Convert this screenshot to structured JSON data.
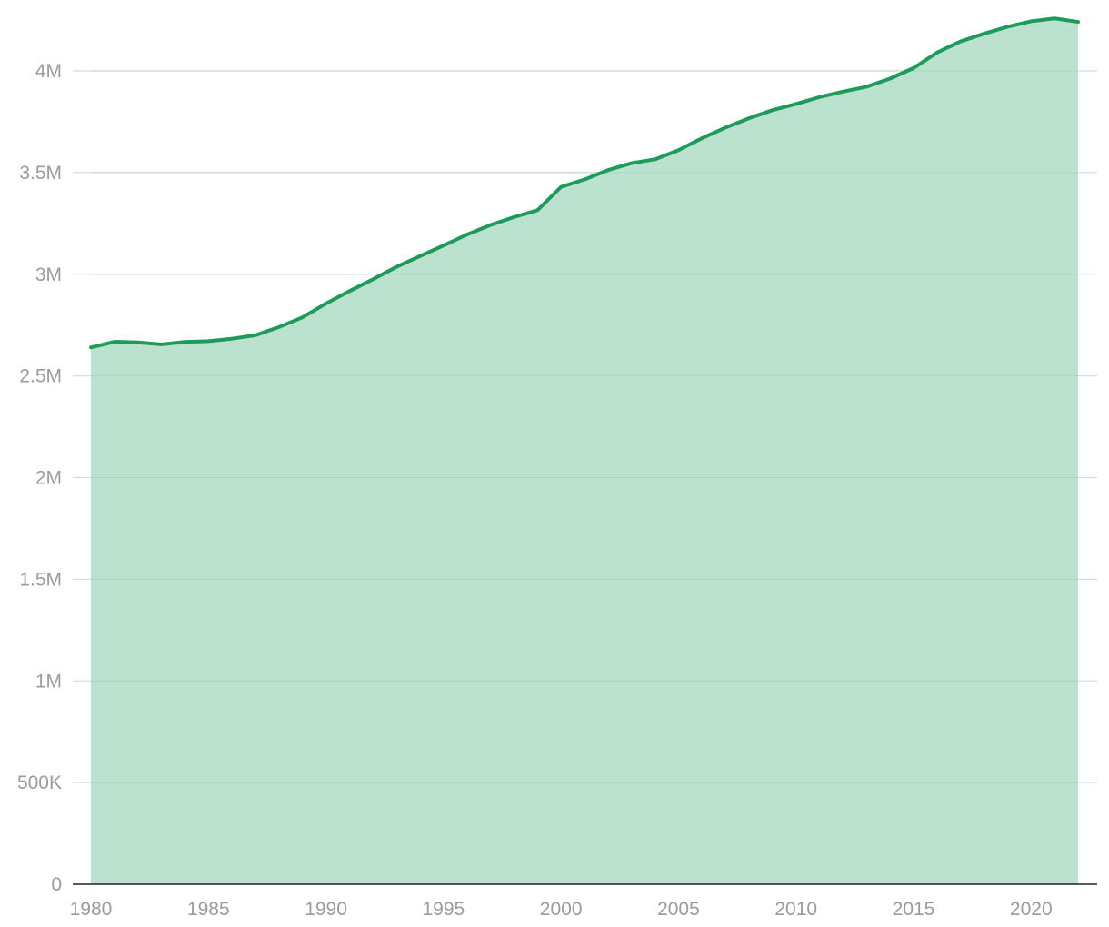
{
  "chart_data": {
    "type": "area",
    "title": "",
    "xlabel": "",
    "ylabel": "",
    "x": [
      1980,
      1981,
      1982,
      1983,
      1984,
      1985,
      1986,
      1987,
      1988,
      1989,
      1990,
      1991,
      1992,
      1993,
      1994,
      1995,
      1996,
      1997,
      1998,
      1999,
      2000,
      2001,
      2002,
      2003,
      2004,
      2005,
      2006,
      2007,
      2008,
      2009,
      2010,
      2011,
      2012,
      2013,
      2014,
      2015,
      2016,
      2017,
      2018,
      2019,
      2020,
      2021,
      2022
    ],
    "values": [
      2640000,
      2668000,
      2665000,
      2655000,
      2667000,
      2671000,
      2683000,
      2700000,
      2740000,
      2788000,
      2856000,
      2917000,
      2975000,
      3036000,
      3089000,
      3141000,
      3195000,
      3242000,
      3281000,
      3315000,
      3429000,
      3466000,
      3512000,
      3546000,
      3565000,
      3610000,
      3669000,
      3721000,
      3767000,
      3807000,
      3837000,
      3871000,
      3898000,
      3922000,
      3962000,
      4014000,
      4090000,
      4145000,
      4183000,
      4217000,
      4244000,
      4258000,
      4241000
    ],
    "x_ticks": [
      "1980",
      "1985",
      "1990",
      "1995",
      "2000",
      "2005",
      "2010",
      "2015",
      "2020"
    ],
    "y_ticks": [
      {
        "value": 0,
        "label": "0"
      },
      {
        "value": 500000,
        "label": "500K"
      },
      {
        "value": 1000000,
        "label": "1M"
      },
      {
        "value": 1500000,
        "label": "1.5M"
      },
      {
        "value": 2000000,
        "label": "2M"
      },
      {
        "value": 2500000,
        "label": "2.5M"
      },
      {
        "value": 3000000,
        "label": "3M"
      },
      {
        "value": 3500000,
        "label": "3.5M"
      },
      {
        "value": 4000000,
        "label": "4M"
      }
    ],
    "xlim": [
      1980,
      2022
    ],
    "ylim": [
      0,
      4000000
    ],
    "grid": true,
    "colors": {
      "line": "#1e9b5a",
      "fill": "#b9e1cd",
      "grid": "#dcdcdc",
      "tick_text": "#9b9b9b",
      "axis": "#222222"
    }
  }
}
